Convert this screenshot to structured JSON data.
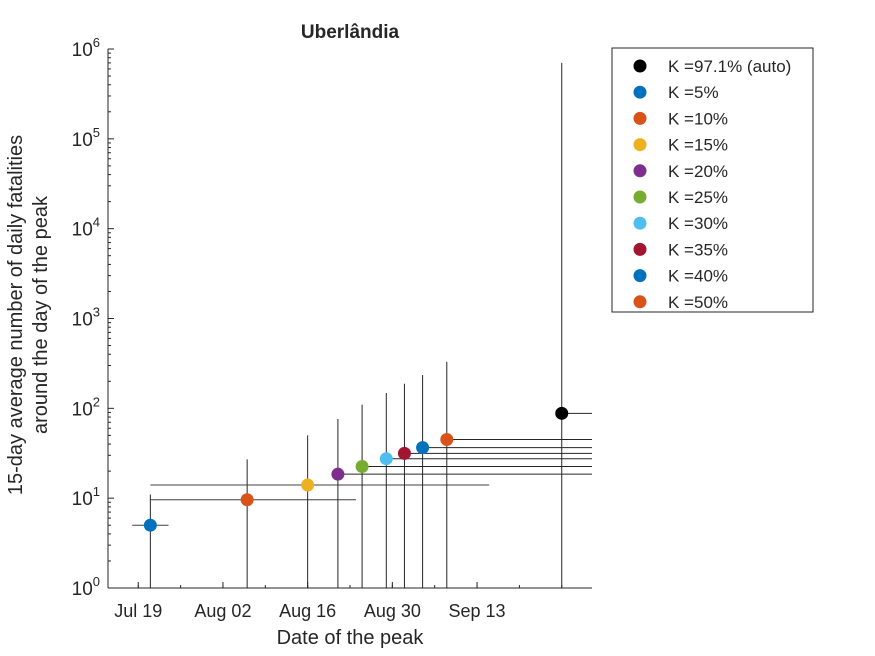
{
  "chart_data": {
    "type": "scatter",
    "title": "Uberlândia",
    "xlabel": "Date of the peak",
    "ylabel": [
      "15-day average number of daily fatalities",
      "around the day of the peak"
    ],
    "yscale": "log",
    "ylim": [
      1,
      1000000
    ],
    "xlim": [
      "2020-07-14",
      "2020-10-02"
    ],
    "x_ticks": [
      "2020-07-19",
      "2020-08-02",
      "2020-08-16",
      "2020-08-30",
      "2020-09-13"
    ],
    "x_tick_labels": [
      "Jul 19",
      "Aug 02",
      "Aug 16",
      "Aug 30",
      "Sep 13"
    ],
    "y_tick_values": [
      1,
      10,
      100,
      1000,
      10000,
      100000,
      1000000
    ],
    "y_tick_exponents": [
      "0",
      "1",
      "2",
      "3",
      "4",
      "5",
      "6"
    ],
    "y_tick_base": "10",
    "grid": false,
    "legend_position": "outside-right",
    "series": [
      {
        "name": "K =97.1% (auto)",
        "color": "#000000",
        "x": "2020-09-27",
        "y": 88,
        "y_low": 1,
        "y_high": 700000,
        "x_low": null,
        "x_high": null
      },
      {
        "name": "K =5%",
        "color": "#0072BD",
        "x": "2020-07-21",
        "y": 5,
        "y_low": 1,
        "y_high": 11,
        "x_low": "2020-07-18",
        "x_high": "2020-07-24"
      },
      {
        "name": "K =10%",
        "color": "#D95319",
        "x": "2020-08-06",
        "y": 9.6,
        "y_low": 1,
        "y_high": 27,
        "x_low": "2020-07-21",
        "x_high": "2020-08-24"
      },
      {
        "name": "K =15%",
        "color": "#EDB120",
        "x": "2020-08-16",
        "y": 14,
        "y_low": 1,
        "y_high": 50,
        "x_low": "2020-07-21",
        "x_high": "2020-09-15"
      },
      {
        "name": "K =20%",
        "color": "#7E2F8E",
        "x": "2020-08-21",
        "y": 18.5,
        "y_low": 1,
        "y_high": 76,
        "x_low": null,
        "x_high": null
      },
      {
        "name": "K =25%",
        "color": "#77AC30",
        "x": "2020-08-25",
        "y": 22.5,
        "y_low": 1,
        "y_high": 110,
        "x_low": null,
        "x_high": null
      },
      {
        "name": "K =30%",
        "color": "#4DBEEE",
        "x": "2020-08-29",
        "y": 27.5,
        "y_low": 1,
        "y_high": 148,
        "x_low": null,
        "x_high": null
      },
      {
        "name": "K =35%",
        "color": "#A2142F",
        "x": "2020-09-01",
        "y": 31.5,
        "y_low": 1,
        "y_high": 188,
        "x_low": null,
        "x_high": null
      },
      {
        "name": "K =40%",
        "color": "#0072BD",
        "x": "2020-09-04",
        "y": 36.5,
        "y_low": 1,
        "y_high": 235,
        "x_low": null,
        "x_high": null
      },
      {
        "name": "K =50%",
        "color": "#D95319",
        "x": "2020-09-08",
        "y": 45,
        "y_low": 1,
        "y_high": 330,
        "x_low": null,
        "x_high": null
      }
    ]
  }
}
